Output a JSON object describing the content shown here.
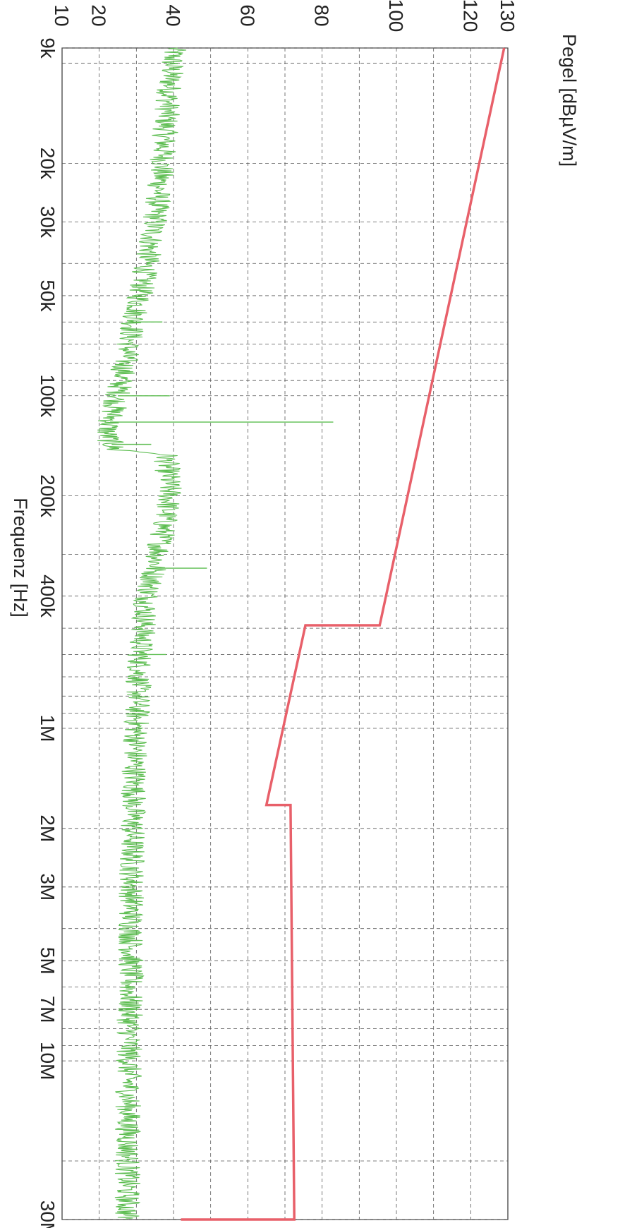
{
  "chart_data": {
    "type": "line",
    "xlabel": "Frequenz [Hz]",
    "ylabel": "Pegel [dBµV/m]",
    "x_scale": "log",
    "xlim": [
      9000,
      30000000
    ],
    "ylim": [
      10,
      130
    ],
    "grid": true,
    "x_ticks": [
      {
        "value": 9000,
        "label": "9k"
      },
      {
        "value": 20000,
        "label": "20k"
      },
      {
        "value": 30000,
        "label": "30k"
      },
      {
        "value": 50000,
        "label": "50k"
      },
      {
        "value": 100000,
        "label": "100k"
      },
      {
        "value": 200000,
        "label": "200k"
      },
      {
        "value": 400000,
        "label": "400k"
      },
      {
        "value": 1000000,
        "label": "1M"
      },
      {
        "value": 2000000,
        "label": "2M"
      },
      {
        "value": 3000000,
        "label": "3M"
      },
      {
        "value": 5000000,
        "label": "5M"
      },
      {
        "value": 7000000,
        "label": "7M"
      },
      {
        "value": 10000000,
        "label": "10M"
      },
      {
        "value": 30000000,
        "label": "30M"
      }
    ],
    "y_ticks": [
      10,
      20,
      40,
      60,
      80,
      100,
      120,
      130
    ],
    "series": [
      {
        "color": "#e8606a",
        "points": [
          [
            9000,
            129
          ],
          [
            490000,
            95.5
          ],
          [
            490000,
            75.5
          ],
          [
            1700000,
            65
          ],
          [
            1700000,
            71.5
          ],
          [
            30000000,
            72.5
          ],
          [
            30000000,
            42
          ]
        ]
      },
      {
        "color": "#5cbd50",
        "noise": true,
        "points": [
          [
            9000,
            40
          ],
          [
            15000,
            38
          ],
          [
            20000,
            37
          ],
          [
            30000,
            35
          ],
          [
            50000,
            31
          ],
          [
            70000,
            28
          ],
          [
            100000,
            25
          ],
          [
            130000,
            22
          ],
          [
            145000,
            24
          ],
          [
            150000,
            38
          ],
          [
            200000,
            39
          ],
          [
            300000,
            36
          ],
          [
            400000,
            33
          ],
          [
            600000,
            31
          ],
          [
            1000000,
            30
          ],
          [
            2000000,
            29
          ],
          [
            5000000,
            28.5
          ],
          [
            10000000,
            28
          ],
          [
            30000000,
            27.5
          ]
        ],
        "spikes": [
          [
            60000,
            37
          ],
          [
            100000,
            39
          ],
          [
            120000,
            83
          ],
          [
            140000,
            34
          ],
          [
            330000,
            49
          ],
          [
            600000,
            38
          ]
        ]
      }
    ]
  }
}
